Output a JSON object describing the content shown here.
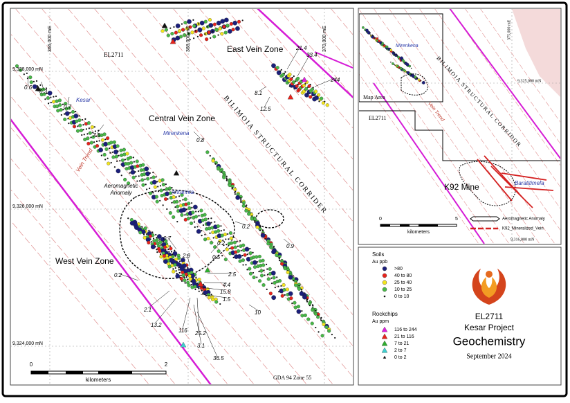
{
  "map": {
    "easting_labels": [
      "366,000 mE",
      "368,000 mE",
      "370,000 mE"
    ],
    "northing_labels": [
      "9,328,000 mN",
      "9,326,000 mN",
      "9,324,000 mN"
    ],
    "tenement": "EL2711",
    "zones": [
      "East Vein Zone",
      "Central Vein Zone",
      "West Vein Zone"
    ],
    "places": [
      "Kesar",
      "Mirenkena",
      "Antarinta"
    ],
    "corridor": "BILIMOIA STRUCTURAL CORRIDER",
    "vein_trend": "Vein Trend",
    "anomaly": [
      "Aeromagnetic",
      "Anomaly"
    ],
    "assays": [
      "0.6",
      "0.3",
      "0.7",
      "7.5",
      "0.8",
      "21.4",
      "33.4",
      "244",
      "8.1",
      "12.5",
      "0.2",
      "0.9",
      "0.7",
      "0.2",
      "2.9",
      "0.5",
      "0.2",
      "2.5",
      "4.4",
      "15.8",
      "1.5",
      "10",
      "2.1",
      "13.2",
      "116",
      "25.2",
      "3.1",
      "36.5"
    ],
    "scale": {
      "start": "0",
      "end": "2",
      "unit": "kilometers"
    },
    "projection": "GDA 94 Zone 55"
  },
  "inset": {
    "place": "Mirenkena",
    "map_area": "Map Area",
    "tenement": "EL2711",
    "corridor": "BILIMOIA STRUCTURAL CORRIDOR",
    "vein_trend": "Vein Trend",
    "mine": "K92 Mine",
    "prospect": "Baratitimefa",
    "easting": "375,000 mE",
    "northings": [
      "9,325,000 mN",
      "9,316,000 mN"
    ],
    "scale": {
      "start": "0",
      "end": "5",
      "unit": "kilometers"
    },
    "legend": [
      "Aeromagnetic Anomaly",
      "K92_Mineralized_Vein"
    ]
  },
  "legend": {
    "soils": {
      "title": "Soils",
      "unit": "Au ppb",
      "items": [
        {
          "label": ">80",
          "color": "#1b1f7a"
        },
        {
          "label": "40  to 80",
          "color": "#e8231c"
        },
        {
          "label": "25  to 40",
          "color": "#f2e51e"
        },
        {
          "label": "10  to 25",
          "color": "#48b848"
        },
        {
          "label": "0  to 10",
          "color": "#111111"
        }
      ]
    },
    "rockchips": {
      "title": "Rockchips",
      "unit": "Au ppm",
      "items": [
        {
          "label": "116  to 244",
          "color": "#e01ee0"
        },
        {
          "label": "21  to 116",
          "color": "#e8231c"
        },
        {
          "label": "7  to 21",
          "color": "#2fae2f"
        },
        {
          "label": "2  to 7",
          "color": "#3fd0d0"
        },
        {
          "label": "0  to 2",
          "color": "#111111"
        }
      ]
    }
  },
  "title_block": {
    "tenement": "EL2711",
    "project": "Kesar Project",
    "subject": "Geochemistry",
    "date": "September 2024"
  }
}
